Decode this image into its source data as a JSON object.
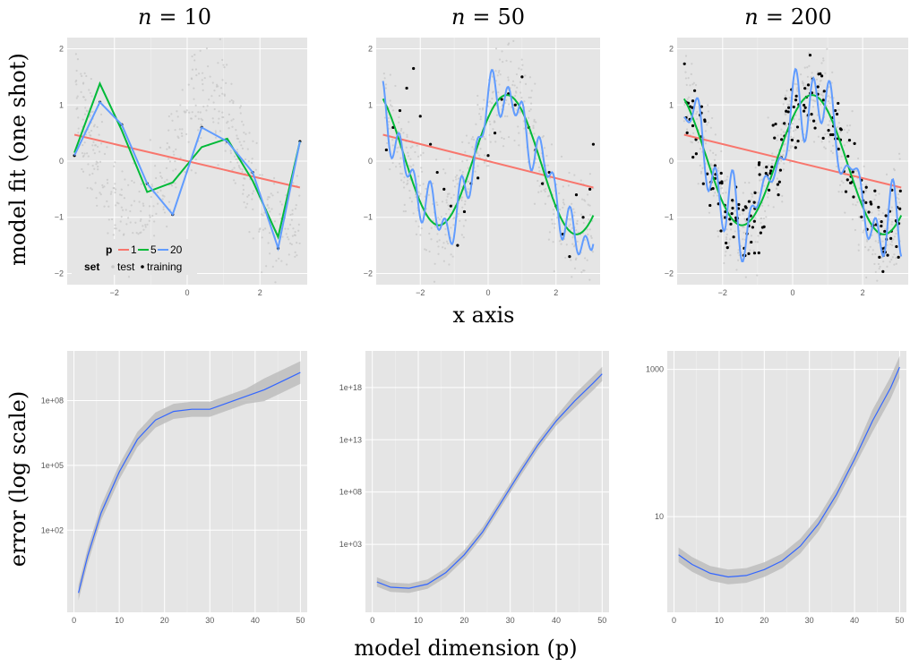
{
  "xlabel_top": "x axis",
  "ylabel_top": "model fit (one shot)",
  "ylabel_bottom": "error (log scale)",
  "xlabel_bottom": "model dimension (p)",
  "legend": {
    "p_title": "p",
    "set_title": "set",
    "p_items": [
      {
        "label": "1",
        "color": "#f8766d"
      },
      {
        "label": "5",
        "color": "#00ba38"
      },
      {
        "label": "20",
        "color": "#619cff"
      }
    ],
    "set_items": [
      {
        "label": "test",
        "color": "#bdbdbd"
      },
      {
        "label": "training",
        "color": "#000000"
      }
    ]
  },
  "colors": {
    "panel_bg": "#e5e5e5",
    "grid": "#ffffff",
    "ribbon": "#bdbdbd",
    "smooth_line": "#3366ff"
  },
  "chart_data": [
    {
      "type": "line",
      "title": "n = 10",
      "title_var": "n",
      "title_val": "10",
      "xlim": [
        -3.3,
        3.3
      ],
      "ylim": [
        -2.2,
        2.2
      ],
      "xticks": [
        -2,
        0,
        2
      ],
      "yticks": [
        -2,
        -1,
        0,
        1,
        2
      ],
      "training": [
        [
          -3.1,
          0.1
        ],
        [
          -2.4,
          1.05
        ],
        [
          -1.8,
          0.65
        ],
        [
          -1.1,
          -0.4
        ],
        [
          -0.4,
          -0.95
        ],
        [
          0.4,
          0.6
        ],
        [
          1.1,
          0.35
        ],
        [
          1.8,
          -0.2
        ],
        [
          2.5,
          -1.55
        ],
        [
          3.1,
          0.35
        ]
      ],
      "series": [
        {
          "name": "1",
          "color": "#f8766d",
          "points": [
            [
              -3.1,
              0.47
            ],
            [
              3.1,
              -0.47
            ]
          ]
        },
        {
          "name": "5",
          "color": "#00ba38",
          "points": [
            [
              -3.1,
              0.15
            ],
            [
              -2.4,
              1.38
            ],
            [
              -1.8,
              0.55
            ],
            [
              -1.1,
              -0.55
            ],
            [
              -0.4,
              -0.38
            ],
            [
              0.4,
              0.25
            ],
            [
              1.1,
              0.4
            ],
            [
              1.8,
              -0.35
            ],
            [
              2.5,
              -1.35
            ],
            [
              3.1,
              0.35
            ]
          ]
        },
        {
          "name": "20",
          "color": "#619cff",
          "points": [
            [
              -3.1,
              0.1
            ],
            [
              -2.4,
              1.05
            ],
            [
              -1.8,
              0.65
            ],
            [
              -1.1,
              -0.4
            ],
            [
              -0.4,
              -0.95
            ],
            [
              0.4,
              0.6
            ],
            [
              1.1,
              0.35
            ],
            [
              1.8,
              -0.2
            ],
            [
              2.5,
              -1.55
            ],
            [
              3.1,
              0.35
            ]
          ]
        }
      ]
    },
    {
      "type": "line",
      "title": "n = 50",
      "title_var": "n",
      "title_val": "50",
      "xlim": [
        -3.3,
        3.3
      ],
      "ylim": [
        -2.2,
        2.2
      ],
      "xticks": [
        -2,
        0,
        2
      ],
      "yticks": [
        -2,
        -1,
        0,
        1,
        2
      ],
      "training": [
        [
          -3.0,
          0.2
        ],
        [
          -2.8,
          0.6
        ],
        [
          -2.6,
          0.9
        ],
        [
          -2.4,
          1.3
        ],
        [
          -2.2,
          1.65
        ],
        [
          -2.0,
          0.8
        ],
        [
          -1.7,
          0.3
        ],
        [
          -1.5,
          -0.2
        ],
        [
          -1.3,
          -0.5
        ],
        [
          -1.1,
          -0.8
        ],
        [
          -0.9,
          -1.5
        ],
        [
          -0.7,
          -0.9
        ],
        [
          -0.5,
          -0.4
        ],
        [
          -0.3,
          -0.3
        ],
        [
          0.0,
          0.1
        ],
        [
          0.2,
          0.5
        ],
        [
          0.4,
          1.1
        ],
        [
          0.6,
          1.2
        ],
        [
          0.8,
          1.0
        ],
        [
          1.0,
          1.5
        ],
        [
          1.2,
          0.6
        ],
        [
          1.4,
          0.2
        ],
        [
          1.6,
          -0.4
        ],
        [
          1.8,
          -0.2
        ],
        [
          2.0,
          -0.8
        ],
        [
          2.2,
          -1.3
        ],
        [
          2.4,
          -1.7
        ],
        [
          2.6,
          -0.6
        ],
        [
          2.8,
          -1.0
        ],
        [
          3.0,
          -0.5
        ],
        [
          3.1,
          0.3
        ]
      ],
      "series": [
        {
          "name": "1",
          "color": "#f8766d",
          "points": [
            [
              -3.1,
              0.47
            ],
            [
              3.1,
              -0.47
            ]
          ]
        },
        {
          "name": "5",
          "color": "#00ba38",
          "fn": "sin",
          "amp": 1.2,
          "slope": -0.04
        },
        {
          "name": "20",
          "color": "#619cff",
          "fn": "wiggle",
          "amp": 1.2,
          "wamp": 0.45,
          "wfreq": 5.5
        }
      ]
    },
    {
      "type": "line",
      "title": "n = 200",
      "title_var": "n",
      "title_val": "200",
      "xlim": [
        -3.3,
        3.3
      ],
      "ylim": [
        -2.2,
        2.2
      ],
      "xticks": [
        -2,
        0,
        2
      ],
      "yticks": [
        -2,
        -1,
        0,
        1,
        2
      ],
      "training_count": 200,
      "series": [
        {
          "name": "1",
          "color": "#f8766d",
          "points": [
            [
              -3.1,
              0.47
            ],
            [
              3.1,
              -0.47
            ]
          ]
        },
        {
          "name": "5",
          "color": "#00ba38",
          "fn": "sin",
          "amp": 1.2,
          "slope": -0.04
        },
        {
          "name": "20",
          "color": "#619cff",
          "fn": "wiggle",
          "amp": 1.15,
          "wamp": 0.6,
          "wfreq": 9
        }
      ]
    },
    {
      "type": "line",
      "log_y": true,
      "xlim": [
        -1.5,
        51.5
      ],
      "ylim_log10": [
        -1.8,
        10.3
      ],
      "xticks": [
        0,
        10,
        20,
        30,
        40,
        50
      ],
      "ytick_labels": [
        "1e+02",
        "1e+05",
        "1e+08"
      ],
      "ytick_log10": [
        2,
        5,
        8
      ],
      "smooth": [
        [
          1,
          -0.9
        ],
        [
          3,
          0.8
        ],
        [
          6,
          2.8
        ],
        [
          10,
          4.7
        ],
        [
          14,
          6.2
        ],
        [
          18,
          7.1
        ],
        [
          22,
          7.5
        ],
        [
          26,
          7.6
        ],
        [
          30,
          7.6
        ],
        [
          34,
          7.9
        ],
        [
          38,
          8.2
        ],
        [
          42,
          8.5
        ],
        [
          46,
          8.9
        ],
        [
          50,
          9.3
        ]
      ],
      "ribbon": 0.35
    },
    {
      "type": "line",
      "log_y": true,
      "xlim": [
        -1.5,
        51.5
      ],
      "ylim_log10": [
        -3.5,
        21.5
      ],
      "xticks": [
        0,
        10,
        20,
        30,
        40,
        50
      ],
      "ytick_labels": [
        "1e+03",
        "1e+08",
        "1e+13",
        "1e+18"
      ],
      "ytick_log10": [
        3,
        8,
        13,
        18
      ],
      "smooth": [
        [
          1,
          -0.6
        ],
        [
          4,
          -1.1
        ],
        [
          8,
          -1.2
        ],
        [
          12,
          -0.8
        ],
        [
          16,
          0.3
        ],
        [
          20,
          2.0
        ],
        [
          24,
          4.2
        ],
        [
          28,
          7.0
        ],
        [
          32,
          9.8
        ],
        [
          36,
          12.5
        ],
        [
          40,
          14.8
        ],
        [
          44,
          16.7
        ],
        [
          48,
          18.4
        ],
        [
          50,
          19.3
        ]
      ],
      "ribbon": 0.45
    },
    {
      "type": "line",
      "log_y": true,
      "xlim": [
        -1.5,
        51.5
      ],
      "ylim_log10": [
        -0.3,
        3.25
      ],
      "xticks": [
        0,
        10,
        20,
        30,
        40,
        50
      ],
      "ytick_labels": [
        "10",
        "1000"
      ],
      "ytick_log10": [
        1,
        3
      ],
      "smooth": [
        [
          1,
          0.48
        ],
        [
          4,
          0.35
        ],
        [
          8,
          0.23
        ],
        [
          12,
          0.18
        ],
        [
          16,
          0.2
        ],
        [
          20,
          0.28
        ],
        [
          24,
          0.4
        ],
        [
          28,
          0.6
        ],
        [
          32,
          0.9
        ],
        [
          36,
          1.3
        ],
        [
          40,
          1.78
        ],
        [
          44,
          2.3
        ],
        [
          48,
          2.75
        ],
        [
          50,
          3.03
        ]
      ],
      "ribbon": 0.1
    }
  ]
}
